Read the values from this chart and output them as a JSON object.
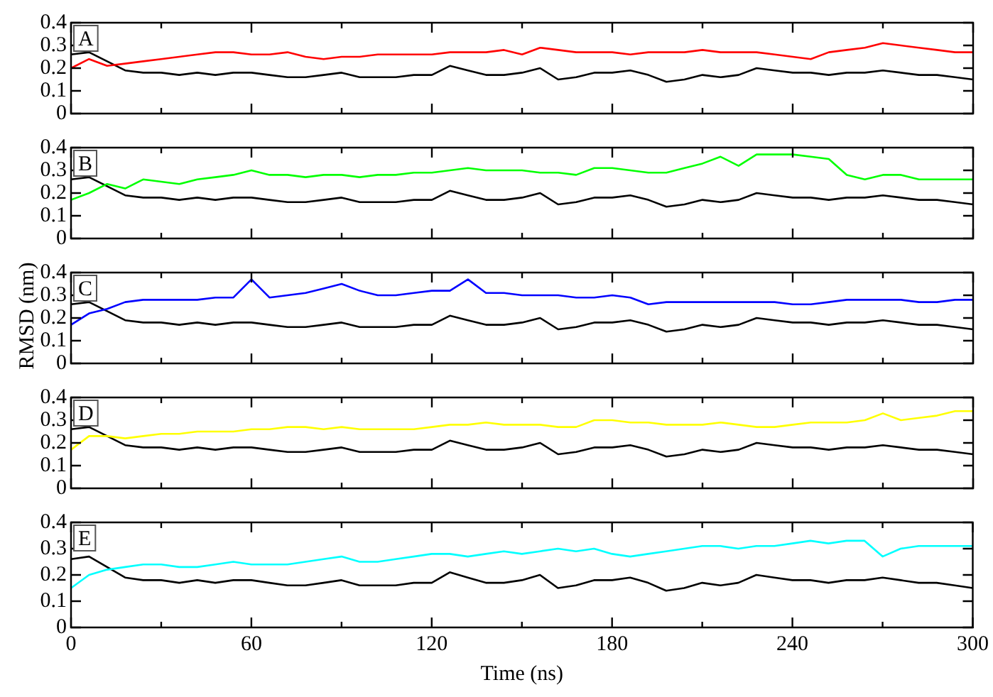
{
  "chart_data": [
    {
      "type": "line",
      "annotations": [
        "A"
      ],
      "x": [
        0,
        6,
        12,
        18,
        24,
        30,
        36,
        42,
        48,
        54,
        60,
        66,
        72,
        78,
        84,
        90,
        96,
        102,
        108,
        114,
        120,
        126,
        132,
        138,
        144,
        150,
        156,
        162,
        168,
        174,
        180,
        186,
        192,
        198,
        204,
        210,
        216,
        222,
        228,
        234,
        240,
        246,
        252,
        258,
        264,
        270,
        276,
        282,
        288,
        294,
        300
      ],
      "xlim": [
        0,
        300
      ],
      "xticks": [
        0,
        {
          "value": 30,
          "label": null
        },
        60,
        {
          "value": 90,
          "label": null
        },
        120,
        {
          "value": 150,
          "label": null
        },
        180,
        {
          "value": 210,
          "label": null
        },
        240,
        {
          "value": 270,
          "label": null
        },
        300
      ],
      "ylim": [
        0,
        0.4
      ],
      "yticks": [
        0,
        0.1,
        0.2,
        0.3,
        0.4
      ],
      "grid": false,
      "legend": false,
      "tick_labels": "y",
      "series": [
        {
          "color": "#ff0000",
          "values": [
            0.2,
            0.24,
            0.21,
            0.22,
            0.23,
            0.24,
            0.25,
            0.26,
            0.27,
            0.27,
            0.26,
            0.26,
            0.27,
            0.25,
            0.24,
            0.25,
            0.25,
            0.26,
            0.26,
            0.26,
            0.26,
            0.27,
            0.27,
            0.27,
            0.28,
            0.26,
            0.29,
            0.28,
            0.27,
            0.27,
            0.27,
            0.26,
            0.27,
            0.27,
            0.27,
            0.28,
            0.27,
            0.27,
            0.27,
            0.26,
            0.25,
            0.24,
            0.27,
            0.28,
            0.29,
            0.31,
            0.3,
            0.29,
            0.28,
            0.27,
            0.27
          ]
        },
        {
          "color": "#000000",
          "values": [
            0.26,
            0.27,
            0.23,
            0.19,
            0.18,
            0.18,
            0.17,
            0.18,
            0.17,
            0.18,
            0.18,
            0.17,
            0.16,
            0.16,
            0.17,
            0.18,
            0.16,
            0.16,
            0.16,
            0.17,
            0.17,
            0.21,
            0.19,
            0.17,
            0.17,
            0.18,
            0.2,
            0.15,
            0.16,
            0.18,
            0.18,
            0.19,
            0.17,
            0.14,
            0.15,
            0.17,
            0.16,
            0.17,
            0.2,
            0.19,
            0.18,
            0.18,
            0.17,
            0.18,
            0.18,
            0.19,
            0.18,
            0.17,
            0.17,
            0.16,
            0.15
          ]
        }
      ]
    },
    {
      "type": "line",
      "annotations": [
        "B"
      ],
      "x": [
        0,
        6,
        12,
        18,
        24,
        30,
        36,
        42,
        48,
        54,
        60,
        66,
        72,
        78,
        84,
        90,
        96,
        102,
        108,
        114,
        120,
        126,
        132,
        138,
        144,
        150,
        156,
        162,
        168,
        174,
        180,
        186,
        192,
        198,
        204,
        210,
        216,
        222,
        228,
        234,
        240,
        246,
        252,
        258,
        264,
        270,
        276,
        282,
        288,
        294,
        300
      ],
      "xlim": [
        0,
        300
      ],
      "xticks": [
        0,
        {
          "value": 30,
          "label": null
        },
        60,
        {
          "value": 90,
          "label": null
        },
        120,
        {
          "value": 150,
          "label": null
        },
        180,
        {
          "value": 210,
          "label": null
        },
        240,
        {
          "value": 270,
          "label": null
        },
        300
      ],
      "ylim": [
        0,
        0.4
      ],
      "yticks": [
        0,
        0.1,
        0.2,
        0.3,
        0.4
      ],
      "grid": false,
      "legend": false,
      "tick_labels": "y",
      "series": [
        {
          "color": "#00ff00",
          "values": [
            0.17,
            0.2,
            0.24,
            0.22,
            0.26,
            0.25,
            0.24,
            0.26,
            0.27,
            0.28,
            0.3,
            0.28,
            0.28,
            0.27,
            0.28,
            0.28,
            0.27,
            0.28,
            0.28,
            0.29,
            0.29,
            0.3,
            0.31,
            0.3,
            0.3,
            0.3,
            0.29,
            0.29,
            0.28,
            0.31,
            0.31,
            0.3,
            0.29,
            0.29,
            0.31,
            0.33,
            0.36,
            0.32,
            0.37,
            0.37,
            0.37,
            0.36,
            0.35,
            0.28,
            0.26,
            0.28,
            0.28,
            0.26,
            0.26,
            0.26,
            0.26
          ]
        },
        {
          "color": "#000000",
          "values": [
            0.26,
            0.27,
            0.23,
            0.19,
            0.18,
            0.18,
            0.17,
            0.18,
            0.17,
            0.18,
            0.18,
            0.17,
            0.16,
            0.16,
            0.17,
            0.18,
            0.16,
            0.16,
            0.16,
            0.17,
            0.17,
            0.21,
            0.19,
            0.17,
            0.17,
            0.18,
            0.2,
            0.15,
            0.16,
            0.18,
            0.18,
            0.19,
            0.17,
            0.14,
            0.15,
            0.17,
            0.16,
            0.17,
            0.2,
            0.19,
            0.18,
            0.18,
            0.17,
            0.18,
            0.18,
            0.19,
            0.18,
            0.17,
            0.17,
            0.16,
            0.15
          ]
        }
      ]
    },
    {
      "type": "line",
      "annotations": [
        "C"
      ],
      "ylabel": "RMSD (nm)",
      "x": [
        0,
        6,
        12,
        18,
        24,
        30,
        36,
        42,
        48,
        54,
        60,
        66,
        72,
        78,
        84,
        90,
        96,
        102,
        108,
        114,
        120,
        126,
        132,
        138,
        144,
        150,
        156,
        162,
        168,
        174,
        180,
        186,
        192,
        198,
        204,
        210,
        216,
        222,
        228,
        234,
        240,
        246,
        252,
        258,
        264,
        270,
        276,
        282,
        288,
        294,
        300
      ],
      "xlim": [
        0,
        300
      ],
      "xticks": [
        0,
        {
          "value": 30,
          "label": null
        },
        60,
        {
          "value": 90,
          "label": null
        },
        120,
        {
          "value": 150,
          "label": null
        },
        180,
        {
          "value": 210,
          "label": null
        },
        240,
        {
          "value": 270,
          "label": null
        },
        300
      ],
      "ylim": [
        0,
        0.4
      ],
      "yticks": [
        0,
        0.1,
        0.2,
        0.3,
        0.4
      ],
      "grid": false,
      "legend": false,
      "tick_labels": "y",
      "series": [
        {
          "color": "#0000ff",
          "values": [
            0.17,
            0.22,
            0.24,
            0.27,
            0.28,
            0.28,
            0.28,
            0.28,
            0.29,
            0.29,
            0.37,
            0.29,
            0.3,
            0.31,
            0.33,
            0.35,
            0.32,
            0.3,
            0.3,
            0.31,
            0.32,
            0.32,
            0.37,
            0.31,
            0.31,
            0.3,
            0.3,
            0.3,
            0.29,
            0.29,
            0.3,
            0.29,
            0.26,
            0.27,
            0.27,
            0.27,
            0.27,
            0.27,
            0.27,
            0.27,
            0.26,
            0.26,
            0.27,
            0.28,
            0.28,
            0.28,
            0.28,
            0.27,
            0.27,
            0.28,
            0.28
          ]
        },
        {
          "color": "#000000",
          "values": [
            0.26,
            0.27,
            0.23,
            0.19,
            0.18,
            0.18,
            0.17,
            0.18,
            0.17,
            0.18,
            0.18,
            0.17,
            0.16,
            0.16,
            0.17,
            0.18,
            0.16,
            0.16,
            0.16,
            0.17,
            0.17,
            0.21,
            0.19,
            0.17,
            0.17,
            0.18,
            0.2,
            0.15,
            0.16,
            0.18,
            0.18,
            0.19,
            0.17,
            0.14,
            0.15,
            0.17,
            0.16,
            0.17,
            0.2,
            0.19,
            0.18,
            0.18,
            0.17,
            0.18,
            0.18,
            0.19,
            0.18,
            0.17,
            0.17,
            0.16,
            0.15
          ]
        }
      ]
    },
    {
      "type": "line",
      "annotations": [
        "D"
      ],
      "x": [
        0,
        6,
        12,
        18,
        24,
        30,
        36,
        42,
        48,
        54,
        60,
        66,
        72,
        78,
        84,
        90,
        96,
        102,
        108,
        114,
        120,
        126,
        132,
        138,
        144,
        150,
        156,
        162,
        168,
        174,
        180,
        186,
        192,
        198,
        204,
        210,
        216,
        222,
        228,
        234,
        240,
        246,
        252,
        258,
        264,
        270,
        276,
        282,
        288,
        294,
        300
      ],
      "xlim": [
        0,
        300
      ],
      "xticks": [
        0,
        {
          "value": 30,
          "label": null
        },
        60,
        {
          "value": 90,
          "label": null
        },
        120,
        {
          "value": 150,
          "label": null
        },
        180,
        {
          "value": 210,
          "label": null
        },
        240,
        {
          "value": 270,
          "label": null
        },
        300
      ],
      "ylim": [
        0,
        0.4
      ],
      "yticks": [
        0,
        0.1,
        0.2,
        0.3,
        0.4
      ],
      "grid": false,
      "legend": false,
      "tick_labels": "y",
      "series": [
        {
          "color": "#ffff00",
          "values": [
            0.17,
            0.23,
            0.23,
            0.22,
            0.23,
            0.24,
            0.24,
            0.25,
            0.25,
            0.25,
            0.26,
            0.26,
            0.27,
            0.27,
            0.26,
            0.27,
            0.26,
            0.26,
            0.26,
            0.26,
            0.27,
            0.28,
            0.28,
            0.29,
            0.28,
            0.28,
            0.28,
            0.27,
            0.27,
            0.3,
            0.3,
            0.29,
            0.29,
            0.28,
            0.28,
            0.28,
            0.29,
            0.28,
            0.27,
            0.27,
            0.28,
            0.29,
            0.29,
            0.29,
            0.3,
            0.33,
            0.3,
            0.31,
            0.32,
            0.34,
            0.34
          ]
        },
        {
          "color": "#000000",
          "values": [
            0.26,
            0.27,
            0.23,
            0.19,
            0.18,
            0.18,
            0.17,
            0.18,
            0.17,
            0.18,
            0.18,
            0.17,
            0.16,
            0.16,
            0.17,
            0.18,
            0.16,
            0.16,
            0.16,
            0.17,
            0.17,
            0.21,
            0.19,
            0.17,
            0.17,
            0.18,
            0.2,
            0.15,
            0.16,
            0.18,
            0.18,
            0.19,
            0.17,
            0.14,
            0.15,
            0.17,
            0.16,
            0.17,
            0.2,
            0.19,
            0.18,
            0.18,
            0.17,
            0.18,
            0.18,
            0.19,
            0.18,
            0.17,
            0.17,
            0.16,
            0.15
          ]
        }
      ]
    },
    {
      "type": "line",
      "annotations": [
        "E"
      ],
      "xlabel": "Time (ns)",
      "x": [
        0,
        6,
        12,
        18,
        24,
        30,
        36,
        42,
        48,
        54,
        60,
        66,
        72,
        78,
        84,
        90,
        96,
        102,
        108,
        114,
        120,
        126,
        132,
        138,
        144,
        150,
        156,
        162,
        168,
        174,
        180,
        186,
        192,
        198,
        204,
        210,
        216,
        222,
        228,
        234,
        240,
        246,
        252,
        258,
        264,
        270,
        276,
        282,
        288,
        294,
        300
      ],
      "xlim": [
        0,
        300
      ],
      "xticks": [
        0,
        {
          "value": 30,
          "label": null
        },
        60,
        {
          "value": 90,
          "label": null
        },
        120,
        {
          "value": 150,
          "label": null
        },
        180,
        {
          "value": 210,
          "label": null
        },
        240,
        {
          "value": 270,
          "label": null
        },
        300
      ],
      "ylim": [
        0,
        0.4
      ],
      "yticks": [
        0,
        0.1,
        0.2,
        0.3,
        0.4
      ],
      "grid": false,
      "legend": false,
      "series": [
        {
          "color": "#00ffff",
          "values": [
            0.15,
            0.2,
            0.22,
            0.23,
            0.24,
            0.24,
            0.23,
            0.23,
            0.24,
            0.25,
            0.24,
            0.24,
            0.24,
            0.25,
            0.26,
            0.27,
            0.25,
            0.25,
            0.26,
            0.27,
            0.28,
            0.28,
            0.27,
            0.28,
            0.29,
            0.28,
            0.29,
            0.3,
            0.29,
            0.3,
            0.28,
            0.27,
            0.28,
            0.29,
            0.3,
            0.31,
            0.31,
            0.3,
            0.31,
            0.31,
            0.32,
            0.33,
            0.32,
            0.33,
            0.33,
            0.27,
            0.3,
            0.31,
            0.31,
            0.31,
            0.31
          ]
        },
        {
          "color": "#000000",
          "values": [
            0.26,
            0.27,
            0.23,
            0.19,
            0.18,
            0.18,
            0.17,
            0.18,
            0.17,
            0.18,
            0.18,
            0.17,
            0.16,
            0.16,
            0.17,
            0.18,
            0.16,
            0.16,
            0.16,
            0.17,
            0.17,
            0.21,
            0.19,
            0.17,
            0.17,
            0.18,
            0.2,
            0.15,
            0.16,
            0.18,
            0.18,
            0.19,
            0.17,
            0.14,
            0.15,
            0.17,
            0.16,
            0.17,
            0.2,
            0.19,
            0.18,
            0.18,
            0.17,
            0.18,
            0.18,
            0.19,
            0.18,
            0.17,
            0.17,
            0.16,
            0.15
          ]
        }
      ]
    }
  ]
}
